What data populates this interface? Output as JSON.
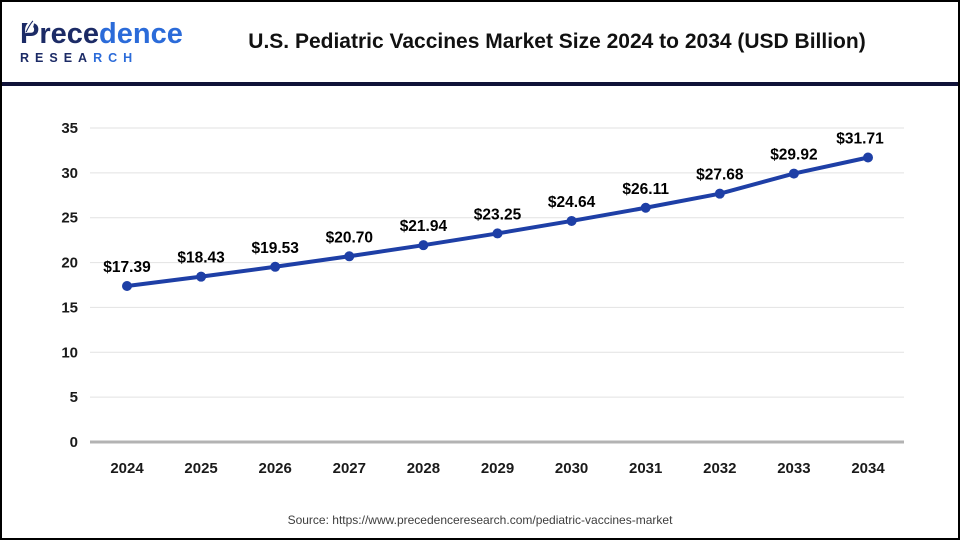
{
  "header": {
    "logo": {
      "name_dark": "Prece",
      "name_light": "dence",
      "sub_dark": "RESEA",
      "sub_light": "RCH"
    },
    "title": "U.S. Pediatric Vaccines Market Size 2024 to 2034 (USD Billion)"
  },
  "chart_data": {
    "type": "line",
    "title": "U.S. Pediatric Vaccines Market Size 2024 to 2034 (USD Billion)",
    "categories": [
      "2024",
      "2025",
      "2026",
      "2027",
      "2028",
      "2029",
      "2030",
      "2031",
      "2032",
      "2033",
      "2034"
    ],
    "values": [
      17.39,
      18.43,
      19.53,
      20.7,
      21.94,
      23.25,
      24.64,
      26.11,
      27.68,
      29.92,
      31.71
    ],
    "point_labels": [
      "$17.39",
      "$18.43",
      "$19.53",
      "$20.70",
      "$21.94",
      "$23.25",
      "$24.64",
      "$26.11",
      "$27.68",
      "$29.92",
      "$31.71"
    ],
    "ylim": [
      0,
      35
    ],
    "ytick_step": 5,
    "yticks": [
      "0",
      "5",
      "10",
      "15",
      "20",
      "25",
      "30",
      "35"
    ],
    "grid": true,
    "legend": "none",
    "colors": {
      "line": "#1e3fa6",
      "marker": "#1e3fa6",
      "grid": "#e2e2e2",
      "zero_axis": "#b3b3b3",
      "tick_label": "#1a1a1a",
      "data_label": "#000000"
    }
  },
  "footer": {
    "source": "Source: https://www.precedenceresearch.com/pediatric-vaccines-market"
  },
  "colors": {
    "divider": "#101238",
    "logo_dark": "#1c2b66",
    "logo_light": "#2b6bd9",
    "page_border": "#000000"
  }
}
